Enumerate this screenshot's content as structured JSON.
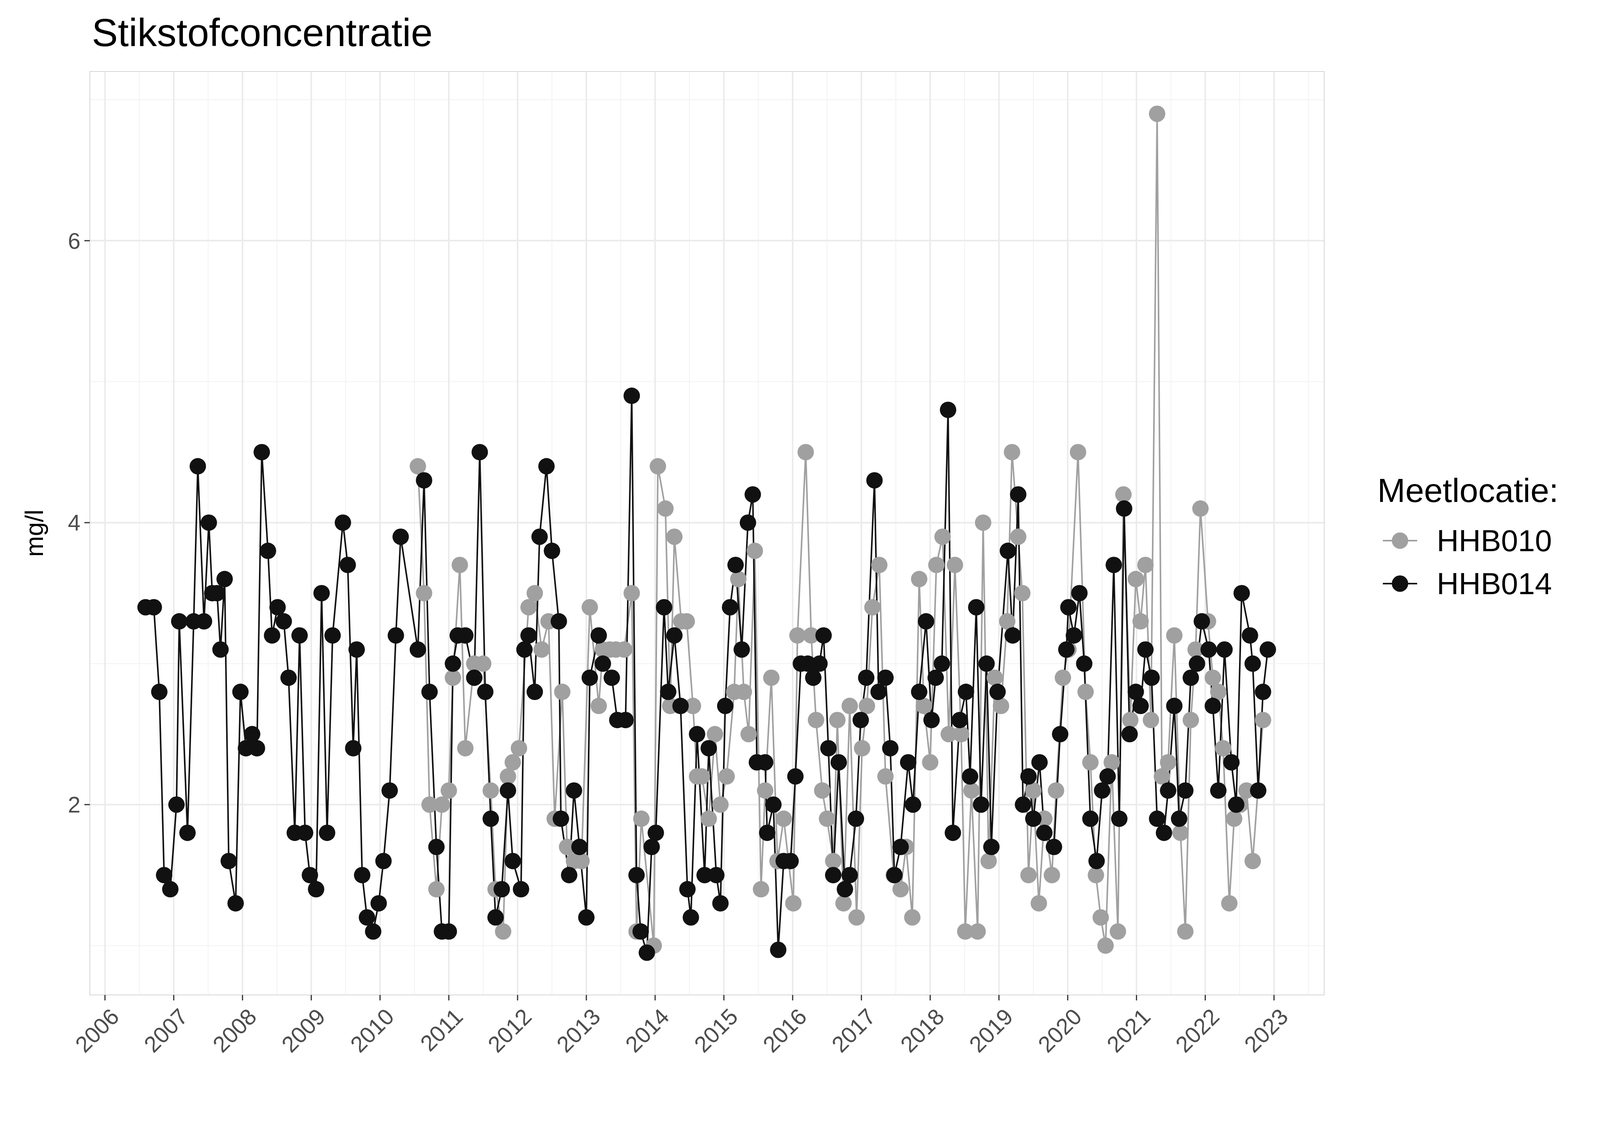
{
  "chart_data": {
    "type": "line",
    "title": "Stikstofconcentratie",
    "ylabel": "mg/l",
    "legend_title": "Meetlocatie:",
    "legend": "right",
    "grid": true,
    "marker": "circle",
    "line_style": "solid",
    "xlim": [
      2005.78,
      2023.73
    ],
    "xticks": [
      2006,
      2007,
      2008,
      2009,
      2010,
      2011,
      2012,
      2013,
      2014,
      2015,
      2016,
      2017,
      2018,
      2019,
      2020,
      2021,
      2022,
      2023
    ],
    "ylim": [
      0.65,
      7.2
    ],
    "yticks": [
      2,
      4,
      6
    ],
    "series": [
      {
        "name": "HHB010",
        "color": "#a0a0a0",
        "x": [
          2010.55,
          2010.64,
          2010.72,
          2010.82,
          2010.9,
          2011.0,
          2011.06,
          2011.16,
          2011.24,
          2011.37,
          2011.5,
          2011.61,
          2011.68,
          2011.79,
          2011.86,
          2011.93,
          2012.02,
          2012.16,
          2012.25,
          2012.35,
          2012.45,
          2012.54,
          2012.65,
          2012.72,
          2012.82,
          2012.93,
          2013.05,
          2013.18,
          2013.24,
          2013.34,
          2013.43,
          2013.55,
          2013.66,
          2013.73,
          2013.8,
          2013.98,
          2014.04,
          2014.15,
          2014.22,
          2014.28,
          2014.38,
          2014.46,
          2014.55,
          2014.61,
          2014.68,
          2014.78,
          2014.87,
          2014.95,
          2015.04,
          2015.15,
          2015.21,
          2015.29,
          2015.36,
          2015.45,
          2015.54,
          2015.6,
          2015.69,
          2015.78,
          2015.87,
          2016.01,
          2016.07,
          2016.19,
          2016.27,
          2016.34,
          2016.43,
          2016.5,
          2016.59,
          2016.65,
          2016.74,
          2016.83,
          2016.93,
          2017.01,
          2017.08,
          2017.16,
          2017.26,
          2017.35,
          2017.47,
          2017.57,
          2017.65,
          2017.74,
          2017.84,
          2017.91,
          2018.0,
          2018.09,
          2018.18,
          2018.27,
          2018.36,
          2018.45,
          2018.51,
          2018.6,
          2018.69,
          2018.77,
          2018.85,
          2018.94,
          2019.03,
          2019.12,
          2019.19,
          2019.28,
          2019.34,
          2019.43,
          2019.5,
          2019.58,
          2019.66,
          2019.77,
          2019.83,
          2019.93,
          2020.01,
          2020.15,
          2020.26,
          2020.33,
          2020.41,
          2020.48,
          2020.55,
          2020.64,
          2020.73,
          2020.81,
          2020.91,
          2020.99,
          2021.06,
          2021.13,
          2021.21,
          2021.3,
          2021.37,
          2021.46,
          2021.55,
          2021.64,
          2021.71,
          2021.79,
          2021.86,
          2021.93,
          2022.04,
          2022.11,
          2022.19,
          2022.26,
          2022.35,
          2022.42,
          2022.51,
          2022.6,
          2022.69,
          2022.84
        ],
        "values": [
          4.4,
          3.5,
          2.0,
          1.4,
          2.0,
          2.1,
          2.9,
          3.7,
          2.4,
          3.0,
          3.0,
          2.1,
          1.4,
          1.1,
          2.2,
          2.3,
          2.4,
          3.4,
          3.5,
          3.1,
          3.3,
          1.9,
          2.8,
          1.7,
          1.6,
          1.6,
          3.4,
          2.7,
          3.1,
          3.1,
          3.1,
          3.1,
          3.5,
          1.1,
          1.9,
          1.0,
          4.4,
          4.1,
          2.7,
          3.9,
          3.3,
          3.3,
          2.7,
          2.2,
          2.2,
          1.9,
          2.5,
          2.0,
          2.2,
          2.8,
          3.6,
          2.8,
          2.5,
          3.8,
          1.4,
          2.1,
          2.9,
          1.6,
          1.9,
          1.3,
          3.2,
          4.5,
          3.2,
          2.6,
          2.1,
          1.9,
          1.6,
          2.6,
          1.3,
          2.7,
          1.2,
          2.4,
          2.7,
          3.4,
          3.7,
          2.2,
          1.5,
          1.4,
          1.7,
          1.2,
          3.6,
          2.7,
          2.3,
          3.7,
          3.9,
          2.5,
          3.7,
          2.5,
          1.1,
          2.1,
          1.1,
          4.0,
          1.6,
          2.9,
          2.7,
          3.3,
          4.5,
          3.9,
          3.5,
          1.5,
          2.1,
          1.3,
          1.9,
          1.5,
          2.1,
          2.9,
          3.1,
          4.5,
          2.8,
          2.3,
          1.5,
          1.2,
          1.0,
          2.3,
          1.1,
          4.2,
          2.6,
          3.6,
          3.3,
          3.7,
          2.6,
          6.9,
          2.2,
          2.3,
          3.2,
          1.8,
          1.1,
          2.6,
          3.1,
          4.1,
          3.3,
          2.9,
          2.8,
          2.4,
          1.3,
          1.9,
          2.0,
          2.1,
          1.6,
          2.6
        ]
      },
      {
        "name": "HHB014",
        "color": "#111111",
        "x": [
          2006.59,
          2006.71,
          2006.79,
          2006.86,
          2006.95,
          2007.04,
          2007.08,
          2007.2,
          2007.29,
          2007.35,
          2007.44,
          2007.51,
          2007.56,
          2007.63,
          2007.68,
          2007.74,
          2007.8,
          2007.9,
          2007.97,
          2008.05,
          2008.14,
          2008.21,
          2008.28,
          2008.37,
          2008.43,
          2008.51,
          2008.6,
          2008.67,
          2008.76,
          2008.83,
          2008.91,
          2008.98,
          2009.07,
          2009.15,
          2009.23,
          2009.31,
          2009.46,
          2009.53,
          2009.61,
          2009.66,
          2009.74,
          2009.81,
          2009.9,
          2009.98,
          2010.05,
          2010.14,
          2010.23,
          2010.3,
          2010.55,
          2010.64,
          2010.72,
          2010.82,
          2010.9,
          2011.0,
          2011.06,
          2011.13,
          2011.24,
          2011.37,
          2011.45,
          2011.53,
          2011.61,
          2011.68,
          2011.77,
          2011.86,
          2011.93,
          2012.05,
          2012.1,
          2012.16,
          2012.25,
          2012.32,
          2012.42,
          2012.5,
          2012.6,
          2012.63,
          2012.75,
          2012.82,
          2012.9,
          2013.0,
          2013.05,
          2013.18,
          2013.24,
          2013.37,
          2013.45,
          2013.57,
          2013.66,
          2013.73,
          2013.79,
          2013.88,
          2013.95,
          2014.01,
          2014.13,
          2014.19,
          2014.28,
          2014.37,
          2014.47,
          2014.52,
          2014.61,
          2014.72,
          2014.78,
          2014.89,
          2014.95,
          2015.02,
          2015.09,
          2015.17,
          2015.26,
          2015.35,
          2015.42,
          2015.48,
          2015.6,
          2015.63,
          2015.72,
          2015.79,
          2015.87,
          2015.97,
          2016.04,
          2016.12,
          2016.22,
          2016.3,
          2016.39,
          2016.45,
          2016.52,
          2016.59,
          2016.67,
          2016.76,
          2016.83,
          2016.92,
          2016.99,
          2017.07,
          2017.19,
          2017.25,
          2017.35,
          2017.42,
          2017.48,
          2017.57,
          2017.68,
          2017.75,
          2017.84,
          2017.94,
          2018.02,
          2018.08,
          2018.17,
          2018.26,
          2018.33,
          2018.43,
          2018.52,
          2018.58,
          2018.67,
          2018.74,
          2018.82,
          2018.89,
          2018.98,
          2019.13,
          2019.2,
          2019.28,
          2019.35,
          2019.43,
          2019.5,
          2019.59,
          2019.66,
          2019.8,
          2019.89,
          2019.98,
          2020.01,
          2020.09,
          2020.17,
          2020.24,
          2020.33,
          2020.42,
          2020.5,
          2020.58,
          2020.67,
          2020.75,
          2020.82,
          2020.9,
          2020.99,
          2021.06,
          2021.13,
          2021.22,
          2021.3,
          2021.4,
          2021.46,
          2021.55,
          2021.62,
          2021.71,
          2021.79,
          2021.88,
          2021.95,
          2022.05,
          2022.11,
          2022.19,
          2022.28,
          2022.38,
          2022.45,
          2022.53,
          2022.65,
          2022.69,
          2022.77,
          2022.84,
          2022.91
        ],
        "values": [
          3.4,
          3.4,
          2.8,
          1.5,
          1.4,
          2.0,
          3.3,
          1.8,
          3.3,
          4.4,
          3.3,
          4.0,
          3.5,
          3.5,
          3.1,
          3.6,
          1.6,
          1.3,
          2.8,
          2.4,
          2.5,
          2.4,
          4.5,
          3.8,
          3.2,
          3.4,
          3.3,
          2.9,
          1.8,
          3.2,
          1.8,
          1.5,
          1.4,
          3.5,
          1.8,
          3.2,
          4.0,
          3.7,
          2.4,
          3.1,
          1.5,
          1.2,
          1.1,
          1.3,
          1.6,
          2.1,
          3.2,
          3.9,
          3.1,
          4.3,
          2.8,
          1.7,
          1.1,
          1.1,
          3.0,
          3.2,
          3.2,
          2.9,
          4.5,
          2.8,
          1.9,
          1.2,
          1.4,
          2.1,
          1.6,
          1.4,
          3.1,
          3.2,
          2.8,
          3.9,
          4.4,
          3.8,
          3.3,
          1.9,
          1.5,
          2.1,
          1.7,
          1.2,
          2.9,
          3.2,
          3.0,
          2.9,
          2.6,
          2.6,
          4.9,
          1.5,
          1.1,
          0.95,
          1.7,
          1.8,
          3.4,
          2.8,
          3.2,
          2.7,
          1.4,
          1.2,
          2.5,
          1.5,
          2.4,
          1.5,
          1.3,
          2.7,
          3.4,
          3.7,
          3.1,
          4.0,
          4.2,
          2.3,
          2.3,
          1.8,
          2.0,
          0.97,
          1.6,
          1.6,
          2.2,
          3.0,
          3.0,
          2.9,
          3.0,
          3.2,
          2.4,
          1.5,
          2.3,
          1.4,
          1.5,
          1.9,
          2.6,
          2.9,
          4.3,
          2.8,
          2.9,
          2.4,
          1.5,
          1.7,
          2.3,
          2.0,
          2.8,
          3.3,
          2.6,
          2.9,
          3.0,
          4.8,
          1.8,
          2.6,
          2.8,
          2.2,
          3.4,
          2.0,
          3.0,
          1.7,
          2.8,
          3.8,
          3.2,
          4.2,
          2.0,
          2.2,
          1.9,
          2.3,
          1.8,
          1.7,
          2.5,
          3.1,
          3.4,
          3.2,
          3.5,
          3.0,
          1.9,
          1.6,
          2.1,
          2.2,
          3.7,
          1.9,
          4.1,
          2.5,
          2.8,
          2.7,
          3.1,
          2.9,
          1.9,
          1.8,
          2.1,
          2.7,
          1.9,
          2.1,
          2.9,
          3.0,
          3.3,
          3.1,
          2.7,
          2.1,
          3.1,
          2.3,
          2.0,
          3.5,
          3.2,
          3.0,
          2.1,
          2.8,
          3.1
        ]
      }
    ]
  }
}
